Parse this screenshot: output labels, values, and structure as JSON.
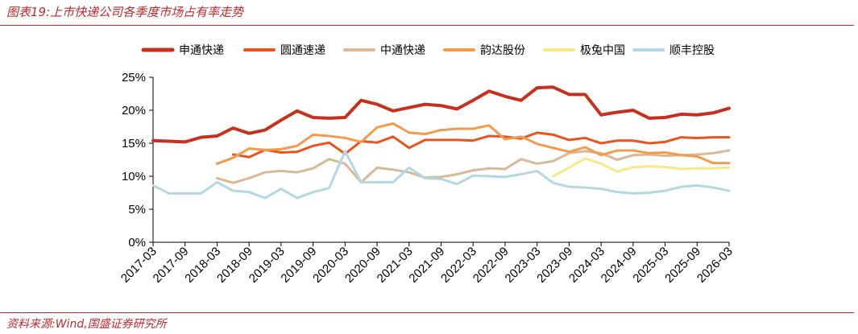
{
  "figure": {
    "title": "图表19:上市快递公司各季度市场占有率走势",
    "source": "资料来源:Wind,国盛证券研究所"
  },
  "chart_data": {
    "type": "line",
    "title": "",
    "xlabel": "",
    "ylabel": "",
    "ylim": [
      0,
      25
    ],
    "ytick_values": [
      0,
      5,
      10,
      15,
      20,
      25
    ],
    "ytick_labels": [
      "0%",
      "5%",
      "10%",
      "15%",
      "20%",
      "25%"
    ],
    "x": [
      "2017-03",
      "2017-06",
      "2017-09",
      "2017-12",
      "2018-03",
      "2018-06",
      "2018-09",
      "2018-12",
      "2019-03",
      "2019-06",
      "2019-09",
      "2019-12",
      "2020-03",
      "2020-06",
      "2020-09",
      "2020-12",
      "2021-03",
      "2021-06",
      "2021-09",
      "2021-12",
      "2022-03",
      "2022-06",
      "2022-09",
      "2022-12",
      "2023-03",
      "2023-06",
      "2023-09",
      "2023-12",
      "2024-03",
      "2024-06",
      "2024-09",
      "2024-12",
      "2025-03",
      "2025-06",
      "2025-09",
      "2025-12",
      "2026-03"
    ],
    "xtick_labels": [
      "2017-03",
      "2017-09",
      "2018-03",
      "2018-09",
      "2019-03",
      "2019-09",
      "2020-03",
      "2020-09",
      "2021-03",
      "2021-09",
      "2022-03",
      "2022-09",
      "2023-03",
      "2023-09",
      "2024-03",
      "2024-09",
      "2025-03",
      "2025-09",
      "2026-03"
    ],
    "grid": false,
    "legend_position": "top",
    "series": [
      {
        "name": "申通快递",
        "color": "#c8301e",
        "width": 4,
        "values": [
          15.4,
          15.3,
          15.2,
          15.9,
          16.1,
          17.3,
          16.5,
          17.0,
          18.5,
          19.9,
          18.9,
          18.8,
          18.9,
          21.5,
          20.9,
          19.9,
          20.4,
          20.9,
          20.7,
          20.2,
          21.5,
          22.9,
          22.1,
          21.5,
          23.4,
          23.5,
          22.4,
          22.4,
          19.3,
          19.7,
          20.0,
          18.8,
          18.9,
          19.4,
          19.3,
          19.6,
          20.3
        ]
      },
      {
        "name": "圆通速递",
        "color": "#e8531e",
        "width": 3,
        "values": [
          null,
          null,
          null,
          null,
          null,
          13.3,
          12.9,
          14.0,
          13.6,
          13.7,
          14.6,
          15.1,
          13.4,
          15.3,
          15.1,
          16.0,
          14.3,
          15.5,
          15.5,
          15.5,
          15.4,
          16.1,
          16.0,
          15.7,
          16.6,
          16.3,
          15.5,
          15.8,
          15.0,
          15.4,
          15.4,
          15.0,
          15.2,
          15.9,
          15.8,
          15.9,
          15.9
        ]
      },
      {
        "name": "中通快递",
        "color": "#d9b896",
        "width": 3,
        "values": [
          null,
          null,
          null,
          null,
          9.7,
          9.0,
          9.7,
          10.6,
          10.8,
          10.6,
          11.2,
          12.6,
          11.9,
          9.1,
          11.3,
          11.0,
          10.6,
          9.8,
          9.9,
          10.3,
          10.9,
          11.2,
          11.1,
          12.6,
          11.9,
          12.3,
          13.5,
          13.8,
          13.5,
          12.5,
          13.2,
          13.3,
          13.1,
          13.2,
          13.3,
          13.5,
          13.9
        ]
      },
      {
        "name": "韵达股份",
        "color": "#f49b4b",
        "width": 3,
        "values": [
          null,
          null,
          null,
          null,
          11.9,
          12.8,
          14.2,
          14.0,
          14.1,
          14.6,
          16.3,
          16.1,
          15.8,
          15.2,
          17.4,
          18.0,
          16.6,
          16.4,
          17.0,
          17.2,
          17.2,
          17.7,
          15.6,
          16.0,
          14.9,
          14.3,
          13.7,
          14.4,
          13.2,
          13.9,
          13.9,
          13.5,
          13.6,
          13.2,
          13.0,
          12.0,
          12.0
        ]
      },
      {
        "name": "极兔中国",
        "color": "#f7e98a",
        "width": 3,
        "values": [
          null,
          null,
          null,
          null,
          null,
          null,
          null,
          null,
          null,
          null,
          null,
          null,
          null,
          null,
          null,
          null,
          null,
          null,
          null,
          null,
          null,
          null,
          null,
          null,
          null,
          10.0,
          11.3,
          12.7,
          11.9,
          10.7,
          11.4,
          11.5,
          11.4,
          11.1,
          11.2,
          11.2,
          11.3
        ]
      },
      {
        "name": "顺丰控股",
        "color": "#b3d7e3",
        "width": 3,
        "values": [
          8.6,
          7.4,
          7.4,
          7.4,
          9.1,
          7.8,
          7.6,
          6.7,
          8.1,
          6.7,
          7.6,
          8.2,
          13.8,
          9.1,
          9.1,
          9.1,
          11.3,
          9.7,
          9.6,
          8.8,
          10.1,
          10.0,
          9.9,
          10.3,
          10.8,
          9.0,
          8.4,
          8.3,
          8.1,
          7.6,
          7.4,
          7.5,
          7.8,
          8.4,
          8.6,
          8.3,
          7.8
        ]
      }
    ]
  }
}
